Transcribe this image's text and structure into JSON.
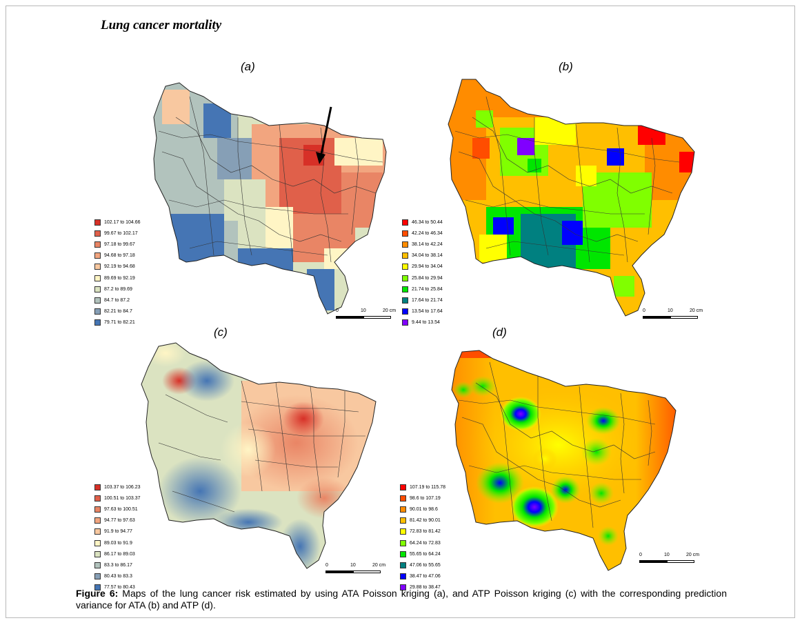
{
  "title": "Lung cancer mortality",
  "panels": {
    "a": {
      "label": "(a)",
      "legend": [
        {
          "label": "102.17 to 104.66",
          "color": "#d73027"
        },
        {
          "label": "99.67 to 102.17",
          "color": "#e0604a"
        },
        {
          "label": "97.18 to 99.67",
          "color": "#e98565"
        },
        {
          "label": "94.68 to 97.18",
          "color": "#f2a57f"
        },
        {
          "label": "92.19 to 94.68",
          "color": "#f8c8a0"
        },
        {
          "label": "89.69 to 92.19",
          "color": "#fff5c5"
        },
        {
          "label": "87.2 to 89.69",
          "color": "#dbe3c1"
        },
        {
          "label": "84.7 to 87.2",
          "color": "#b2c3bd"
        },
        {
          "label": "82.21 to 84.7",
          "color": "#869fb6"
        },
        {
          "label": "79.71 to 82.21",
          "color": "#4575b4"
        }
      ],
      "scale": {
        "ticks": [
          "0",
          "10",
          "20 cm"
        ]
      }
    },
    "b": {
      "label": "(b)",
      "legend": [
        {
          "label": "46.34 to 50.44",
          "color": "#ff0000"
        },
        {
          "label": "42.24 to 46.34",
          "color": "#ff4d00"
        },
        {
          "label": "38.14 to 42.24",
          "color": "#ff8c00"
        },
        {
          "label": "34.04 to 38.14",
          "color": "#ffbf00"
        },
        {
          "label": "29.94 to 34.04",
          "color": "#ffff00"
        },
        {
          "label": "25.84 to 29.94",
          "color": "#80ff00"
        },
        {
          "label": "21.74 to 25.84",
          "color": "#00e600"
        },
        {
          "label": "17.64 to 21.74",
          "color": "#008080"
        },
        {
          "label": "13.54 to 17.64",
          "color": "#0000ff"
        },
        {
          "label": "9.44 to 13.54",
          "color": "#8000ff"
        }
      ],
      "scale": {
        "ticks": [
          "0",
          "10",
          "20 cm"
        ]
      }
    },
    "c": {
      "label": "(c)",
      "legend": [
        {
          "label": "103.37 to 106.23",
          "color": "#d73027"
        },
        {
          "label": "100.51 to 103.37",
          "color": "#e0604a"
        },
        {
          "label": "97.63 to 100.51",
          "color": "#e98565"
        },
        {
          "label": "94.77 to 97.63",
          "color": "#f2a57f"
        },
        {
          "label": "91.9 to 94.77",
          "color": "#f8c8a0"
        },
        {
          "label": "89.03 to 91.9",
          "color": "#fff5c5"
        },
        {
          "label": "86.17 to 89.03",
          "color": "#dbe3c1"
        },
        {
          "label": "83.3 to 86.17",
          "color": "#b2c3bd"
        },
        {
          "label": "80.43 to 83.3",
          "color": "#869fb6"
        },
        {
          "label": "77.57 to 80.43",
          "color": "#4575b4"
        }
      ],
      "scale": {
        "ticks": [
          "0",
          "10",
          "20 cm"
        ]
      }
    },
    "d": {
      "label": "(d)",
      "legend": [
        {
          "label": "107.19 to 115.78",
          "color": "#ff0000"
        },
        {
          "label": "98.6 to 107.19",
          "color": "#ff4d00"
        },
        {
          "label": "90.01 to 98.6",
          "color": "#ff8c00"
        },
        {
          "label": "81.42 to 90.01",
          "color": "#ffbf00"
        },
        {
          "label": "72.83 to 81.42",
          "color": "#ffff00"
        },
        {
          "label": "64.24 to 72.83",
          "color": "#80ff00"
        },
        {
          "label": "55.65 to 64.24",
          "color": "#00e600"
        },
        {
          "label": "47.06 to 55.65",
          "color": "#008080"
        },
        {
          "label": "38.47 to 47.06",
          "color": "#0000ff"
        },
        {
          "label": "29.88 to 38.47",
          "color": "#8000ff"
        }
      ],
      "scale": {
        "ticks": [
          "0",
          "10",
          "20 cm"
        ]
      }
    }
  },
  "caption": {
    "prefix": "Figure 6:",
    "text": " Maps of the lung cancer risk estimated by using ATA Poisson kriging (a), and ATP Poisson kriging (c) with the corresponding prediction variance for ATA (b) and ATP (d)."
  }
}
